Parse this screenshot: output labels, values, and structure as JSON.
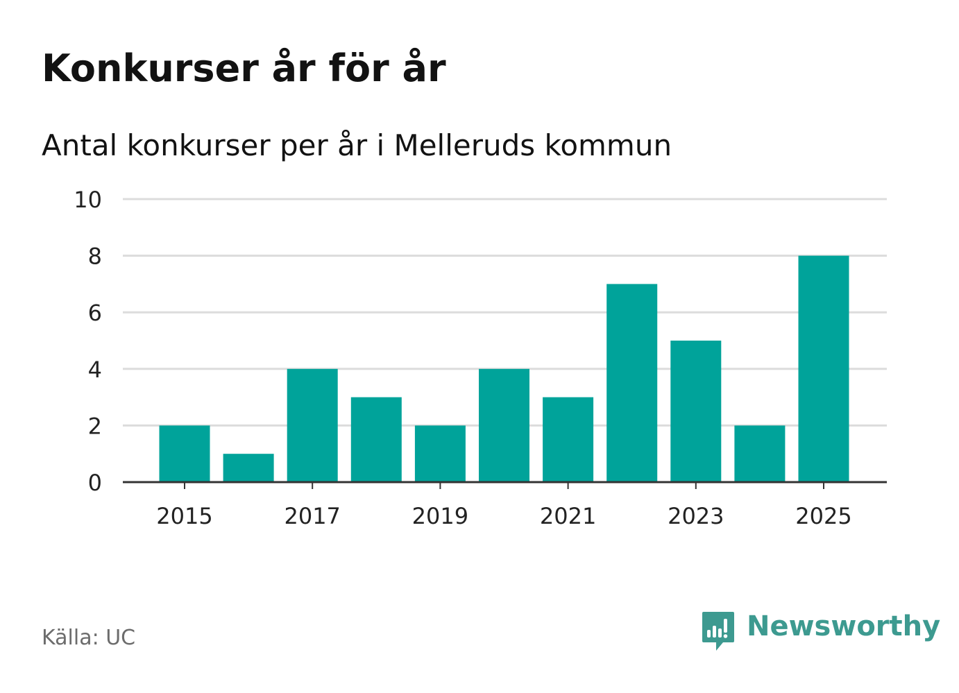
{
  "title": "Konkurser år för år",
  "subtitle": "Antal konkurser per år i Melleruds kommun",
  "source": "Källa: UC",
  "brand": {
    "name": "Newsworthy",
    "logo_icon": "newsworthy-logo-icon",
    "color": "#3d9a90"
  },
  "colors": {
    "bar": "#00a39a",
    "grid": "#dcdcdc",
    "axis": "#333333",
    "tick_text": "#222222"
  },
  "chart_data": {
    "type": "bar",
    "categories": [
      "2015",
      "2016",
      "2017",
      "2018",
      "2019",
      "2020",
      "2021",
      "2022",
      "2023",
      "2024",
      "2025"
    ],
    "values": [
      2,
      1,
      4,
      3,
      2,
      4,
      3,
      7,
      5,
      2,
      8
    ],
    "x_tick_labels": [
      "2015",
      "2017",
      "2019",
      "2021",
      "2023",
      "2025"
    ],
    "y_ticks": [
      "0",
      "2",
      "4",
      "6",
      "8",
      "10"
    ],
    "ylim": [
      0,
      10
    ],
    "grid": true,
    "xlabel": "",
    "ylabel": ""
  }
}
